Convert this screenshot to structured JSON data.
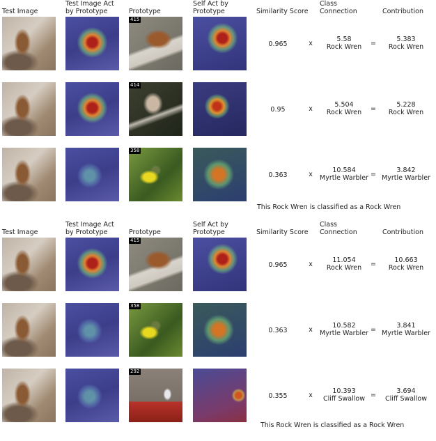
{
  "headers": {
    "test_image": "Test Image",
    "test_act_line1": "Test Image Act",
    "test_act_line2": "by Prototype",
    "prototype": "Prototype",
    "self_act_line1": "Self Act by",
    "self_act_line2": "Prototype",
    "similarity": "Similarity Score",
    "connection_line1": "Class",
    "connection_line2": "Connection",
    "contribution": "Contribution",
    "times_symbol": "x",
    "equals_symbol": "="
  },
  "panels": [
    {
      "summary": "This Rock Wren is classified as a Rock Wren",
      "rows": [
        {
          "prototype_id": "415",
          "similarity": "0.965",
          "connection": "5.58",
          "connection_class": "Rock Wren",
          "contribution": "5.383",
          "contribution_class": "Rock Wren"
        },
        {
          "prototype_id": "414",
          "similarity": "0.95",
          "connection": "5.504",
          "connection_class": "Rock Wren",
          "contribution": "5.228",
          "contribution_class": "Rock Wren"
        },
        {
          "prototype_id": "358",
          "similarity": "0.363",
          "connection": "10.584",
          "connection_class": "Myrtle Warbler",
          "contribution": "3.842",
          "contribution_class": "Myrtle Warbler"
        }
      ]
    },
    {
      "summary": "This Rock Wren is classified as a Rock Wren",
      "rows": [
        {
          "prototype_id": "415",
          "similarity": "0.965",
          "connection": "11.054",
          "connection_class": "Rock Wren",
          "contribution": "10.663",
          "contribution_class": "Rock Wren"
        },
        {
          "prototype_id": "358",
          "similarity": "0.363",
          "connection": "10.582",
          "connection_class": "Myrtle Warbler",
          "contribution": "3.841",
          "contribution_class": "Myrtle Warbler"
        },
        {
          "prototype_id": "292",
          "similarity": "0.355",
          "connection": "10.393",
          "connection_class": "Cliff Swallow",
          "contribution": "3.694",
          "contribution_class": "Cliff Swallow"
        }
      ]
    }
  ]
}
